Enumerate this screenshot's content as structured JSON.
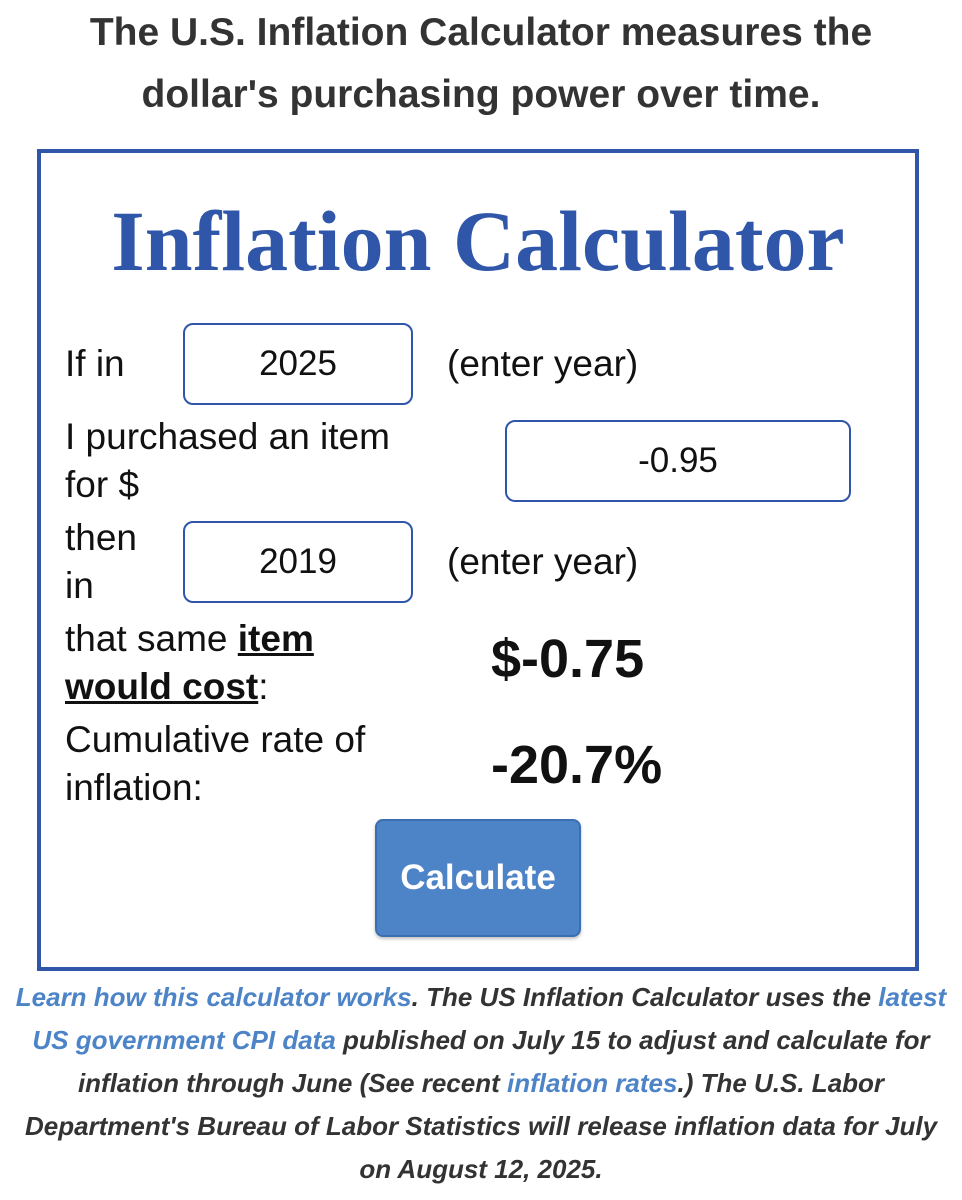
{
  "intro": {
    "line1": "The U.S. Inflation Calculator measures the",
    "line2": "dollar's purchasing power over time."
  },
  "calculator": {
    "title": "Inflation Calculator",
    "row1": {
      "label": "If in",
      "start_year": "2025",
      "hint": "(enter year)"
    },
    "row2": {
      "label_line1": "I purchased an item",
      "label_line2": "for $",
      "amount": "-0.95"
    },
    "row3": {
      "label_line1": "then",
      "label_line2": "in",
      "end_year": "2019",
      "hint": "(enter year)"
    },
    "row4": {
      "label_prefix": "that same ",
      "label_item": "item",
      "label_would_cost": "would cost",
      "label_colon": ":",
      "cost": "$-0.75"
    },
    "row5": {
      "label_line1": "Cumulative rate of",
      "label_line2": "inflation:",
      "rate": "-20.7%"
    },
    "button_label": "Calculate",
    "colors": {
      "frame": "#2f56a8",
      "button": "#4d84c7",
      "link": "#4d84c7"
    }
  },
  "footnote": {
    "link_learn": "Learn how this calculator works",
    "text1": ". The US Inflation Calculator uses the ",
    "link_cpi": "latest US government CPI data",
    "text2": " published on July 15 to adjust and calculate for inflation through June (See recent ",
    "link_rates": "inflation rates",
    "text3": ".) The U.S. Labor Department's Bureau of Labor Statistics will release inflation data for July on August 12, 2025."
  }
}
